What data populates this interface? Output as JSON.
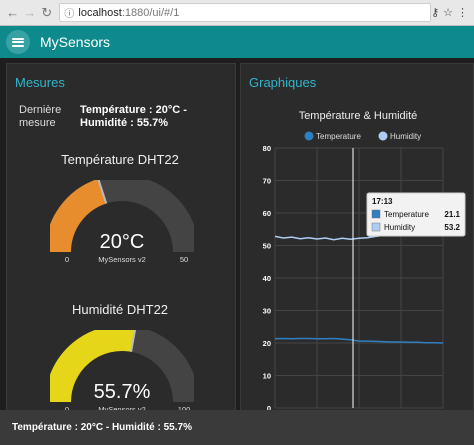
{
  "browser": {
    "url_host": "localhost",
    "url_path": ":1880/ui/#/1"
  },
  "header": {
    "title": "MySensors"
  },
  "mesures": {
    "title": "Mesures",
    "label": "Dernière mesure",
    "value": "Température : 20°C - Humidité : 55.7%",
    "temperature_gauge": {
      "title": "Température DHT22",
      "value_text": "20°C",
      "value": 20,
      "sublabel": "MySensors v2",
      "min": "0",
      "max": "50",
      "fill_color": "#e88d2e"
    },
    "humidity_gauge": {
      "title": "Humidité DHT22",
      "value_text": "55.7%",
      "value": 55.7,
      "sublabel": "MySensors v2",
      "min": "0",
      "max": "100",
      "fill_color": "#e6d61a"
    }
  },
  "graphiques": {
    "title": "Graphiques"
  },
  "chart_data": {
    "type": "line",
    "title": "Température & Humidité",
    "ylim": [
      0,
      80
    ],
    "yticks": [
      "80",
      "70",
      "60",
      "50",
      "40",
      "30",
      "20",
      "10",
      "0"
    ],
    "grid": true,
    "legend_position": "top",
    "series": [
      {
        "name": "Temperature",
        "color": "#2f7fc1",
        "x": [
          0,
          5,
          10,
          15,
          20,
          25,
          30,
          35,
          40,
          45,
          50,
          55,
          60,
          65,
          70,
          75,
          80,
          85,
          90,
          95,
          100
        ],
        "y": [
          21.3,
          21.4,
          21.3,
          21.4,
          21.4,
          21.3,
          21.3,
          21.4,
          21.2,
          21.0,
          20.6,
          20.6,
          20.5,
          20.4,
          20.3,
          20.3,
          20.2,
          20.2,
          20.1,
          20.1,
          20.0
        ]
      },
      {
        "name": "Humidity",
        "color": "#aecdf2",
        "x": [
          0,
          5,
          10,
          15,
          20,
          25,
          30,
          35,
          40,
          45,
          50,
          55,
          60,
          65,
          70,
          75,
          80,
          85,
          90,
          95,
          100
        ],
        "y": [
          52.8,
          52.3,
          52.6,
          52.1,
          52.4,
          52.0,
          52.3,
          51.8,
          52.2,
          51.9,
          52.2,
          52.4,
          52.8,
          53.2,
          53.6,
          54.0,
          54.5,
          55.0,
          55.3,
          55.6,
          55.7
        ]
      }
    ],
    "tooltip": {
      "time": "17:13",
      "rows": [
        {
          "name": "Temperature",
          "value": "21.1"
        },
        {
          "name": "Humidity",
          "value": "53.2"
        }
      ]
    }
  },
  "toast": {
    "message": "Température : 20°C - Humidité : 55.7%"
  }
}
